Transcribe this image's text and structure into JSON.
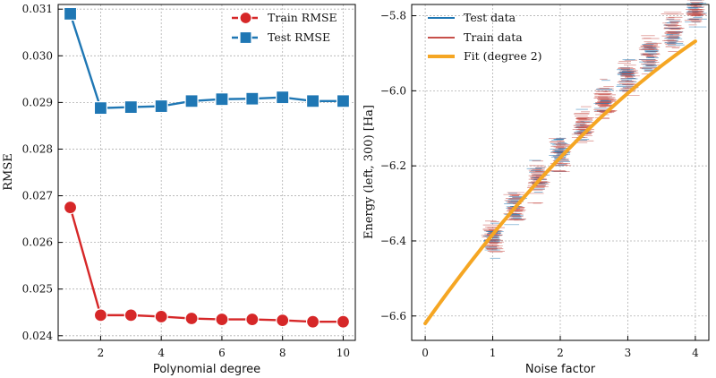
{
  "colors": {
    "train": "#d62728",
    "test": "#1f77b4",
    "fit": "#f5a623",
    "legend_train": "#c7504a"
  },
  "chart_data": [
    {
      "type": "line",
      "title": "",
      "xlabel": "Polynomial degree",
      "ylabel": "RMSE",
      "xlim": [
        0.6,
        10.4
      ],
      "ylim": [
        0.0239,
        0.0311
      ],
      "grid": true,
      "legend_position": "top-right",
      "x_ticks": [
        2,
        4,
        6,
        8,
        10
      ],
      "x_tick_labels": [
        "2",
        "4",
        "6",
        "8",
        "10"
      ],
      "y_ticks": [
        0.024,
        0.025,
        0.026,
        0.027,
        0.028,
        0.029,
        0.03,
        0.031
      ],
      "y_tick_labels": [
        "0.024",
        "0.025",
        "0.026",
        "0.027",
        "0.028",
        "0.029",
        "0.030",
        "0.031"
      ],
      "x": [
        1,
        2,
        3,
        4,
        5,
        6,
        7,
        8,
        9,
        10
      ],
      "series": [
        {
          "name": "Train RMSE",
          "marker": "circle",
          "color_key": "train",
          "values": [
            0.02675,
            0.02444,
            0.02444,
            0.02441,
            0.02437,
            0.02435,
            0.02435,
            0.02433,
            0.0243,
            0.0243
          ]
        },
        {
          "name": "Test RMSE",
          "marker": "square",
          "color_key": "test",
          "values": [
            0.0309,
            0.02888,
            0.0289,
            0.02892,
            0.02903,
            0.02907,
            0.02908,
            0.02911,
            0.02903,
            0.02903
          ]
        }
      ]
    },
    {
      "type": "scatter",
      "title": "",
      "xlabel": "Noise factor",
      "ylabel": "Energy (left, 300) [Ha]",
      "xlim": [
        -0.2,
        4.2
      ],
      "ylim": [
        -6.665,
        -5.77
      ],
      "grid": true,
      "legend_position": "top-left",
      "x_ticks": [
        0,
        1,
        2,
        3,
        4
      ],
      "x_tick_labels": [
        "0",
        "1",
        "2",
        "3",
        "4"
      ],
      "y_ticks": [
        -6.6,
        -6.4,
        -6.2,
        -6.0,
        -5.8
      ],
      "y_tick_labels": [
        "−6.6",
        "−6.4",
        "−6.2",
        "−6.0",
        "−5.8"
      ],
      "series": [
        {
          "name": "Test data",
          "style": "short-dash-cluster",
          "color_key": "test"
        },
        {
          "name": "Train data",
          "style": "short-dash-cluster",
          "color_key": "train"
        },
        {
          "name": "Fit (degree 2)",
          "style": "line",
          "color_key": "fit",
          "fit_coefficients": {
            "a": -0.0165,
            "b": 0.254,
            "c": -6.62
          }
        }
      ],
      "clusters": [
        {
          "x": 1.0,
          "center": -6.393,
          "spread": 0.045
        },
        {
          "x": 1.333,
          "center": -6.31,
          "spread": 0.045
        },
        {
          "x": 1.667,
          "center": -6.233,
          "spread": 0.045
        },
        {
          "x": 2.0,
          "center": -6.167,
          "spread": 0.045
        },
        {
          "x": 2.333,
          "center": -6.097,
          "spread": 0.045
        },
        {
          "x": 2.667,
          "center": -6.03,
          "spread": 0.045
        },
        {
          "x": 3.0,
          "center": -5.962,
          "spread": 0.045
        },
        {
          "x": 3.333,
          "center": -5.905,
          "spread": 0.045
        },
        {
          "x": 3.667,
          "center": -5.84,
          "spread": 0.045
        },
        {
          "x": 4.0,
          "center": -5.79,
          "spread": 0.045
        }
      ]
    }
  ]
}
